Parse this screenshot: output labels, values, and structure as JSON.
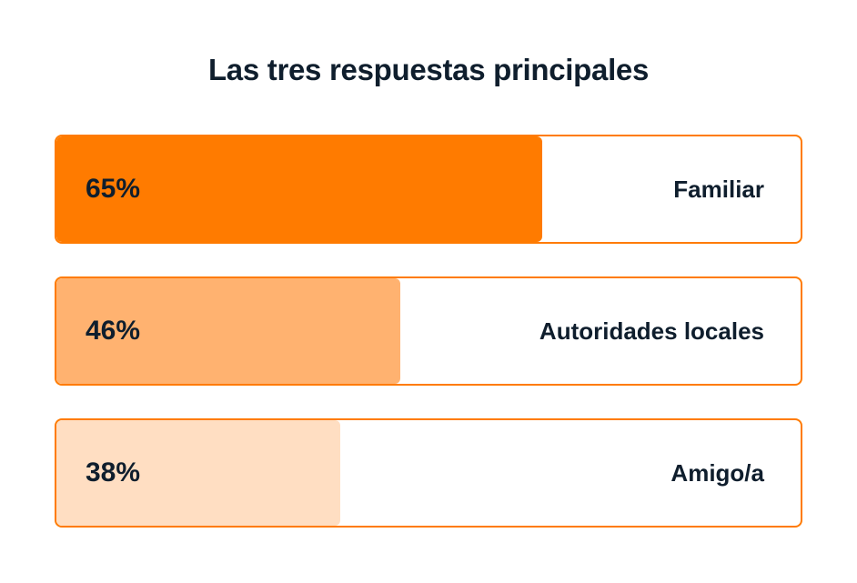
{
  "chart_data": {
    "type": "bar",
    "orientation": "horizontal",
    "title": "Las tres respuestas principales",
    "categories": [
      "Familiar",
      "Autoridades locales",
      "Amigo/a"
    ],
    "values": [
      65,
      46,
      38
    ],
    "value_labels": [
      "65%",
      "46%",
      "38%"
    ],
    "unit": "%",
    "xlim": [
      0,
      100
    ],
    "grid": false,
    "colors": [
      "#ff7b00",
      "#ffb270",
      "#ffdec2"
    ],
    "border_color": "#ff7b00"
  }
}
